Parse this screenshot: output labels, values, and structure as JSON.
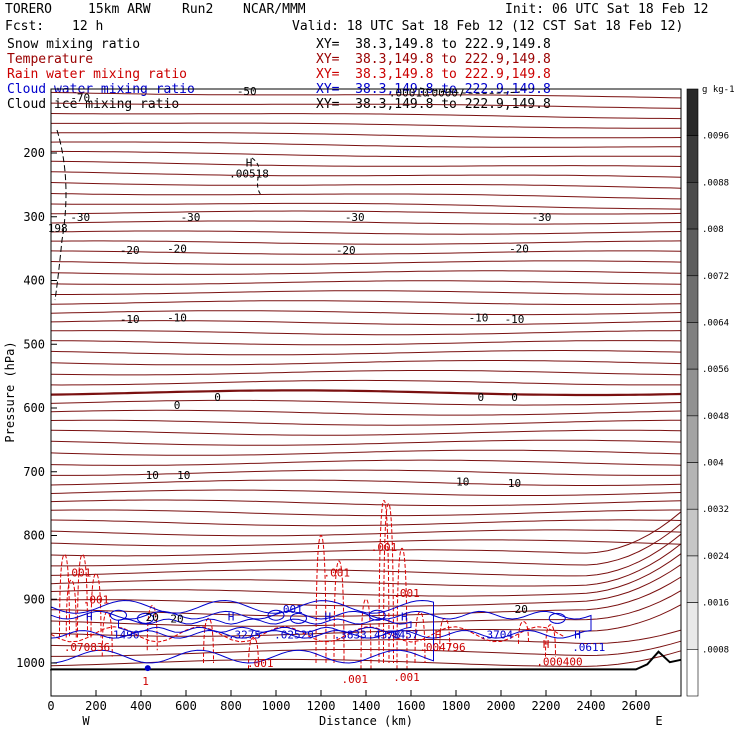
{
  "header": {
    "model": "TORERO",
    "resolution": "15km ARW",
    "run": "Run2",
    "center": "NCAR/MMM",
    "init": "Init: 06 UTC Sat 18 Feb 12",
    "fcst_label": "Fcst:",
    "fcst_value": "12 h",
    "valid": "Valid: 18 UTC Sat 18 Feb 12 (12 CST Sat 18 Feb 12)"
  },
  "fields": [
    {
      "name": "Snow mixing ratio",
      "xy": "XY=  38.3,149.8 to 222.9,149.8",
      "color": "#000000"
    },
    {
      "name": "Temperature",
      "xy": "XY=  38.3,149.8 to 222.9,149.8",
      "color": "#990000"
    },
    {
      "name": "Rain water mixing ratio",
      "xy": "XY=  38.3,149.8 to 222.9,149.8",
      "color": "#cc0000"
    },
    {
      "name": "Cloud water mixing ratio",
      "xy": "XY=  38.3,149.8 to 222.9,149.8",
      "color": "#0000cc"
    },
    {
      "name": "Cloud ice mixing ratio",
      "xy": "XY=  38.3,149.8 to 222.9,149.8",
      "color": "#000000"
    }
  ],
  "chart_data": {
    "type": "contour",
    "xlabel": "Distance (km)",
    "ylabel": "Pressure (hPa)",
    "xlim": [
      0,
      2800
    ],
    "ylim": [
      1050,
      100
    ],
    "xticks": [
      0,
      200,
      400,
      600,
      800,
      1000,
      1200,
      1400,
      1600,
      1800,
      2000,
      2200,
      2400,
      2600
    ],
    "yticks": [
      200,
      300,
      400,
      500,
      600,
      700,
      800,
      900,
      1000
    ],
    "x_end_labels": [
      "W",
      "E"
    ],
    "colorbar": {
      "unit": "g kg-1",
      "ticks": [
        ".0096",
        ".0088",
        ".008",
        ".0072",
        ".0064",
        ".0056",
        ".0048",
        ".004",
        ".0032",
        ".0024",
        ".0016",
        ".0008"
      ]
    },
    "temperature_labels": [
      {
        "x": 130,
        "p": 113,
        "label": "-70"
      },
      {
        "x": 870,
        "p": 103,
        "label": "-50"
      },
      {
        "x": 130,
        "p": 300,
        "label": "-30"
      },
      {
        "x": 620,
        "p": 300,
        "label": "-30"
      },
      {
        "x": 1350,
        "p": 300,
        "label": "-30"
      },
      {
        "x": 2180,
        "p": 300,
        "label": "-30"
      },
      {
        "x": 350,
        "p": 352,
        "label": "-20"
      },
      {
        "x": 560,
        "p": 350,
        "label": "-20"
      },
      {
        "x": 1310,
        "p": 352,
        "label": "-20"
      },
      {
        "x": 2080,
        "p": 350,
        "label": "-20"
      },
      {
        "x": 350,
        "p": 460,
        "label": "-10"
      },
      {
        "x": 560,
        "p": 458,
        "label": "-10"
      },
      {
        "x": 1900,
        "p": 458,
        "label": "-10"
      },
      {
        "x": 2060,
        "p": 460,
        "label": "-10"
      },
      {
        "x": 560,
        "p": 595,
        "label": "0"
      },
      {
        "x": 740,
        "p": 583,
        "label": "0"
      },
      {
        "x": 1910,
        "p": 583,
        "label": "0"
      },
      {
        "x": 2060,
        "p": 583,
        "label": "0"
      },
      {
        "x": 450,
        "p": 705,
        "label": "10"
      },
      {
        "x": 590,
        "p": 705,
        "label": "10"
      },
      {
        "x": 1830,
        "p": 715,
        "label": "10"
      },
      {
        "x": 2060,
        "p": 718,
        "label": "10"
      },
      {
        "x": 2090,
        "p": 915,
        "label": "20"
      },
      {
        "x": 450,
        "p": 928,
        "label": "20"
      },
      {
        "x": 560,
        "p": 930,
        "label": "20"
      }
    ],
    "snow_labels": [
      {
        "x": 880,
        "p": 232,
        "label": ".00518"
      },
      {
        "x": 1590,
        "p": 105,
        "label": ".00010"
      },
      {
        "x": 1750,
        "p": 105,
        "label": ".00007"
      },
      {
        "x": 30,
        "p": 318,
        "label": "198"
      }
    ],
    "rain_labels": [
      {
        "x": 120,
        "p": 858,
        "label": ".001"
      },
      {
        "x": 200,
        "p": 900,
        "label": ".001"
      },
      {
        "x": 1270,
        "p": 858,
        "label": ".001"
      },
      {
        "x": 1480,
        "p": 818,
        "label": ".001"
      },
      {
        "x": 1580,
        "p": 890,
        "label": ".001"
      },
      {
        "x": 930,
        "p": 1000,
        "label": ".001"
      },
      {
        "x": 1350,
        "p": 1025,
        "label": ".001"
      },
      {
        "x": 1580,
        "p": 1022,
        "label": ".001"
      },
      {
        "x": 2260,
        "p": 998,
        "label": ".000400"
      },
      {
        "x": 1740,
        "p": 975,
        "label": ".004796"
      },
      {
        "x": 160,
        "p": 975,
        "label": ".070836"
      },
      {
        "x": 420,
        "p": 1028,
        "label": "1"
      }
    ],
    "cloud_labels": [
      {
        "x": 320,
        "p": 955,
        "label": ".1490"
      },
      {
        "x": 860,
        "p": 955,
        "label": ".3275"
      },
      {
        "x": 1080,
        "p": 955,
        "label": ".02529"
      },
      {
        "x": 1330,
        "p": 955,
        "label": ".3833"
      },
      {
        "x": 1480,
        "p": 955,
        "label": ".4378"
      },
      {
        "x": 1560,
        "p": 955,
        "label": ".8457"
      },
      {
        "x": 1980,
        "p": 955,
        "label": ".3704"
      },
      {
        "x": 2390,
        "p": 975,
        "label": ".0611"
      },
      {
        "x": 1060,
        "p": 915,
        "label": ".001"
      }
    ],
    "high_markers": [
      {
        "x": 170,
        "p": 927,
        "color": "#0000cc"
      },
      {
        "x": 800,
        "p": 927,
        "color": "#0000cc"
      },
      {
        "x": 1230,
        "p": 927,
        "color": "#0000cc"
      },
      {
        "x": 1570,
        "p": 927,
        "color": "#0000cc"
      },
      {
        "x": 2340,
        "p": 955,
        "color": "#0000cc"
      },
      {
        "x": 2200,
        "p": 970,
        "color": "#cc0000"
      },
      {
        "x": 1720,
        "p": 955,
        "color": "#cc0000"
      },
      {
        "x": 880,
        "p": 215,
        "color": "#000000"
      }
    ]
  }
}
